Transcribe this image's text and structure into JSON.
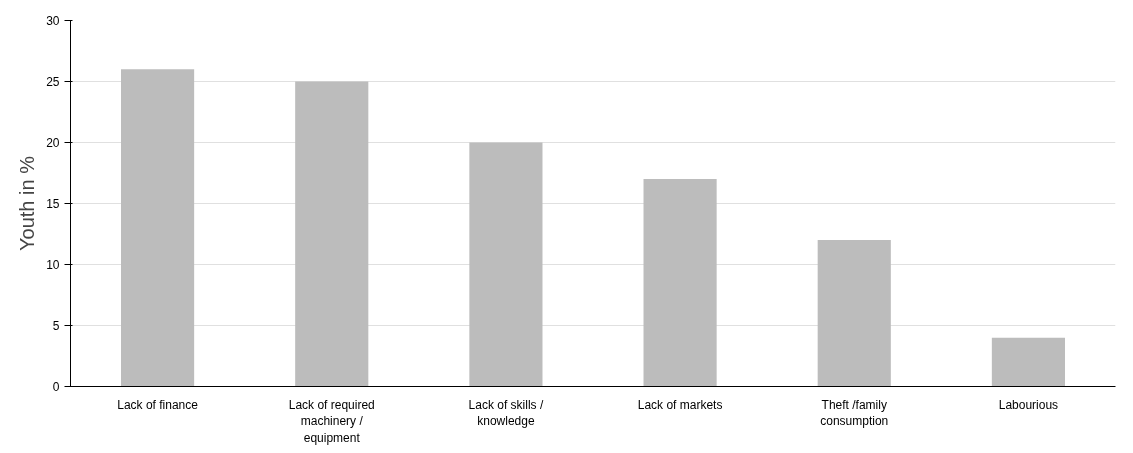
{
  "chart_data": {
    "type": "bar",
    "ylabel": "Youth in %",
    "categories": [
      "Lack of finance",
      "Lack of required machinery / equipment",
      "Lack of skills / knowledge",
      "Lack of markets",
      "Theft /family consumption",
      "Labourious"
    ],
    "values": [
      26,
      25,
      20,
      17,
      12,
      4
    ],
    "color": "#bcbcbc",
    "ylim": [
      0,
      30
    ],
    "yticks": [
      0,
      5,
      10,
      15,
      20,
      25,
      30
    ],
    "grid": "y"
  }
}
